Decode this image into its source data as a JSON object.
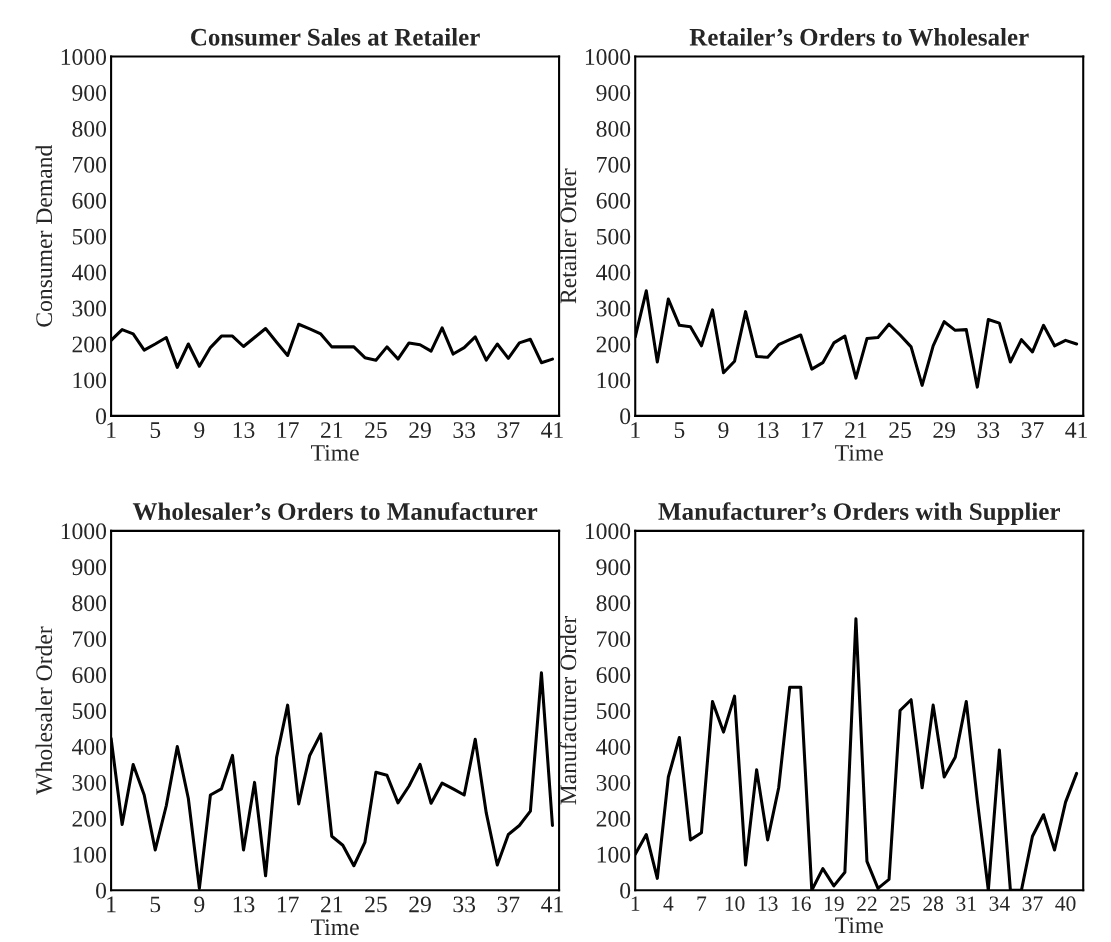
{
  "chart_data": [
    {
      "type": "line",
      "title": "Consumer Sales at Retailer",
      "xlabel": "Time",
      "ylabel": "Consumer Demand",
      "color": "#000000",
      "grid": false,
      "legend": false,
      "x": [
        1,
        2,
        3,
        4,
        5,
        6,
        7,
        8,
        9,
        10,
        11,
        12,
        13,
        14,
        15,
        16,
        17,
        18,
        19,
        20,
        21,
        22,
        23,
        24,
        25,
        26,
        27,
        28,
        29,
        30,
        31,
        32,
        33,
        34,
        35,
        36,
        37,
        38,
        39,
        40,
        41
      ],
      "values": [
        210,
        240,
        228,
        183,
        200,
        218,
        135,
        200,
        138,
        190,
        222,
        222,
        193,
        218,
        243,
        205,
        168,
        255,
        242,
        228,
        192,
        192,
        192,
        162,
        155,
        192,
        158,
        203,
        198,
        180,
        245,
        172,
        190,
        220,
        155,
        200,
        160,
        203,
        213,
        148,
        158
      ],
      "xlim": [
        1,
        41.6
      ],
      "xticks": [
        1,
        5,
        9,
        13,
        17,
        21,
        25,
        29,
        33,
        37,
        41
      ],
      "ylim": [
        0,
        1000
      ],
      "yticks": [
        0,
        100,
        200,
        300,
        400,
        500,
        600,
        700,
        800,
        900,
        1000
      ]
    },
    {
      "type": "line",
      "title": "Retailer’s Orders to Wholesaler",
      "xlabel": "Time",
      "ylabel": "Retailer Order",
      "color": "#000000",
      "grid": false,
      "legend": false,
      "x": [
        1,
        2,
        3,
        4,
        5,
        6,
        7,
        8,
        9,
        10,
        11,
        12,
        13,
        14,
        15,
        16,
        17,
        18,
        19,
        20,
        21,
        22,
        23,
        24,
        25,
        26,
        27,
        28,
        29,
        30,
        31,
        32,
        33,
        34,
        35,
        36,
        37,
        38,
        39,
        40,
        41
      ],
      "values": [
        220,
        348,
        150,
        325,
        252,
        248,
        195,
        295,
        120,
        152,
        290,
        165,
        163,
        198,
        212,
        225,
        130,
        148,
        203,
        222,
        105,
        215,
        218,
        255,
        225,
        192,
        85,
        195,
        262,
        238,
        240,
        80,
        268,
        258,
        150,
        212,
        178,
        252,
        195,
        210,
        200
      ],
      "xlim": [
        1,
        41.6
      ],
      "xticks": [
        1,
        5,
        9,
        13,
        17,
        21,
        25,
        29,
        33,
        37,
        41
      ],
      "ylim": [
        0,
        1000
      ],
      "yticks": [
        0,
        100,
        200,
        300,
        400,
        500,
        600,
        700,
        800,
        900,
        1000
      ]
    },
    {
      "type": "line",
      "title": "Wholesaler’s Orders to Manufacturer",
      "xlabel": "Time",
      "ylabel": "Wholesaler Order",
      "color": "#000000",
      "grid": false,
      "legend": false,
      "x": [
        1,
        2,
        3,
        4,
        5,
        6,
        7,
        8,
        9,
        10,
        11,
        12,
        13,
        14,
        15,
        16,
        17,
        18,
        19,
        20,
        21,
        22,
        23,
        24,
        25,
        26,
        27,
        28,
        29,
        30,
        31,
        32,
        33,
        34,
        35,
        36,
        37,
        38,
        39,
        40,
        41
      ],
      "values": [
        422,
        183,
        350,
        265,
        112,
        235,
        400,
        255,
        5,
        265,
        282,
        375,
        112,
        300,
        40,
        370,
        515,
        240,
        375,
        435,
        150,
        125,
        68,
        133,
        328,
        320,
        243,
        290,
        350,
        242,
        298,
        282,
        265,
        420,
        215,
        70,
        155,
        180,
        220,
        605,
        180
      ],
      "xlim": [
        1,
        41.6
      ],
      "xticks": [
        1,
        5,
        9,
        13,
        17,
        21,
        25,
        29,
        33,
        37,
        41
      ],
      "ylim": [
        0,
        1000
      ],
      "yticks": [
        0,
        100,
        200,
        300,
        400,
        500,
        600,
        700,
        800,
        900,
        1000
      ]
    },
    {
      "type": "line",
      "title": "Manufacturer’s Orders with Supplier",
      "xlabel": "Time",
      "ylabel": "Manufacturer Order",
      "color": "#000000",
      "grid": false,
      "legend": false,
      "x": [
        1,
        2,
        3,
        4,
        5,
        6,
        7,
        8,
        9,
        10,
        11,
        12,
        13,
        14,
        15,
        16,
        17,
        18,
        19,
        20,
        21,
        22,
        23,
        24,
        25,
        26,
        27,
        28,
        29,
        30,
        31,
        32,
        33,
        34,
        35,
        36,
        37,
        38,
        39,
        40,
        41
      ],
      "values": [
        100,
        155,
        33,
        315,
        425,
        140,
        160,
        525,
        440,
        540,
        70,
        335,
        140,
        285,
        565,
        565,
        0,
        60,
        12,
        50,
        755,
        80,
        5,
        30,
        500,
        530,
        285,
        515,
        315,
        370,
        525,
        250,
        0,
        390,
        0,
        0,
        150,
        210,
        112,
        245,
        325
      ],
      "xlim": [
        1,
        41.6
      ],
      "xticks": [
        1,
        4,
        7,
        10,
        13,
        16,
        19,
        22,
        25,
        28,
        31,
        34,
        37,
        40
      ],
      "ylim": [
        0,
        1000
      ],
      "yticks": [
        0,
        100,
        200,
        300,
        400,
        500,
        600,
        700,
        800,
        900,
        1000
      ]
    }
  ]
}
